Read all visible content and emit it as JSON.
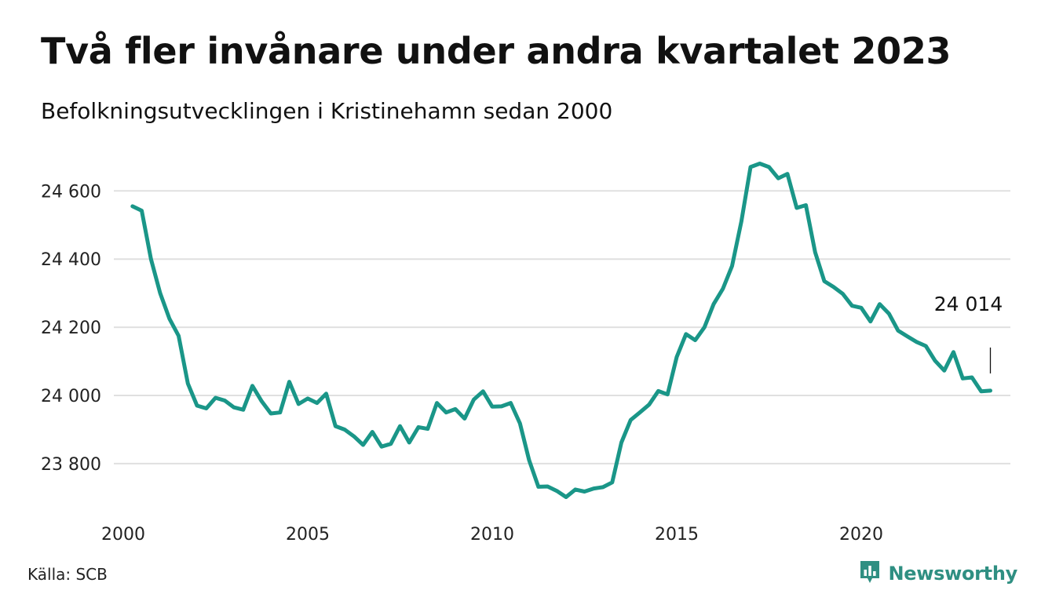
{
  "title": "Två fler invånare under andra kvartalet 2023",
  "subtitle": "Befolkningsutvecklingen i Kristinehamn sedan 2000",
  "source": "Källa: SCB",
  "brand": {
    "name": "Newsworthy",
    "icon": "newsworthy-logo-icon",
    "color": "#2f8f82"
  },
  "colors": {
    "line": "#1a9688",
    "grid": "#e0e0e0",
    "text": "#111111"
  },
  "chart_data": {
    "type": "line",
    "title": "Två fler invånare under andra kvartalet 2023",
    "subtitle": "Befolkningsutvecklingen i Kristinehamn sedan 2000",
    "xlabel": "",
    "ylabel": "",
    "xlim": [
      2000.0,
      2023.5
    ],
    "ylim": [
      23680,
      24700
    ],
    "grid": true,
    "xticks": [
      2000,
      2005,
      2010,
      2015,
      2020
    ],
    "xtick_labels": [
      "2000",
      "2005",
      "2010",
      "2015",
      "2020"
    ],
    "yticks": [
      23800,
      24000,
      24200,
      24400,
      24600
    ],
    "ytick_labels": [
      "23 800",
      "24 000",
      "24 200",
      "24 400",
      "24 600"
    ],
    "end_label": "24 014",
    "series": [
      {
        "x": [
          2000.25,
          2000.5,
          2000.75,
          2001.0,
          2001.25,
          2001.5,
          2001.75,
          2002.0,
          2002.25,
          2002.5,
          2002.75,
          2003.0,
          2003.25,
          2003.5,
          2003.75,
          2004.0,
          2004.25,
          2004.5,
          2004.75,
          2005.0,
          2005.25,
          2005.5,
          2005.75,
          2006.0,
          2006.25,
          2006.5,
          2006.75,
          2007.0,
          2007.25,
          2007.5,
          2007.75,
          2008.0,
          2008.25,
          2008.5,
          2008.75,
          2009.0,
          2009.25,
          2009.5,
          2009.75,
          2010.0,
          2010.25,
          2010.5,
          2010.75,
          2011.0,
          2011.25,
          2011.5,
          2011.75,
          2012.0,
          2012.25,
          2012.5,
          2012.75,
          2013.0,
          2013.25,
          2013.5,
          2013.75,
          2014.0,
          2014.25,
          2014.5,
          2014.75,
          2015.0,
          2015.25,
          2015.5,
          2015.75,
          2016.0,
          2016.25,
          2016.5,
          2016.75,
          2017.0,
          2017.25,
          2017.5,
          2017.75,
          2018.0,
          2018.25,
          2018.5,
          2018.75,
          2019.0,
          2019.25,
          2019.5,
          2019.75,
          2020.0,
          2020.25,
          2020.5,
          2020.75,
          2021.0,
          2021.25,
          2021.5,
          2021.75,
          2022.0,
          2022.25,
          2022.5,
          2022.75,
          2023.0,
          2023.25,
          2023.5
        ],
        "values": [
          24555,
          24542,
          24400,
          24300,
          24225,
          24175,
          24035,
          23970,
          23962,
          23993,
          23985,
          23965,
          23958,
          24028,
          23983,
          23947,
          23950,
          24040,
          23975,
          23991,
          23978,
          24005,
          23910,
          23900,
          23880,
          23855,
          23893,
          23850,
          23858,
          23910,
          23862,
          23907,
          23902,
          23978,
          23950,
          23960,
          23932,
          23988,
          24012,
          23967,
          23968,
          23978,
          23918,
          23810,
          23732,
          23733,
          23720,
          23702,
          23724,
          23718,
          23727,
          23731,
          23745,
          23862,
          23928,
          23950,
          23973,
          24013,
          24003,
          24113,
          24180,
          24162,
          24200,
          24268,
          24313,
          24380,
          24510,
          24670,
          24680,
          24670,
          24637,
          24650,
          24550,
          24558,
          24420,
          24335,
          24318,
          24298,
          24263,
          24257,
          24217,
          24268,
          24240,
          24190,
          24173,
          24157,
          24145,
          24102,
          24073,
          24127,
          24050,
          24053,
          24012,
          24014
        ]
      }
    ]
  }
}
